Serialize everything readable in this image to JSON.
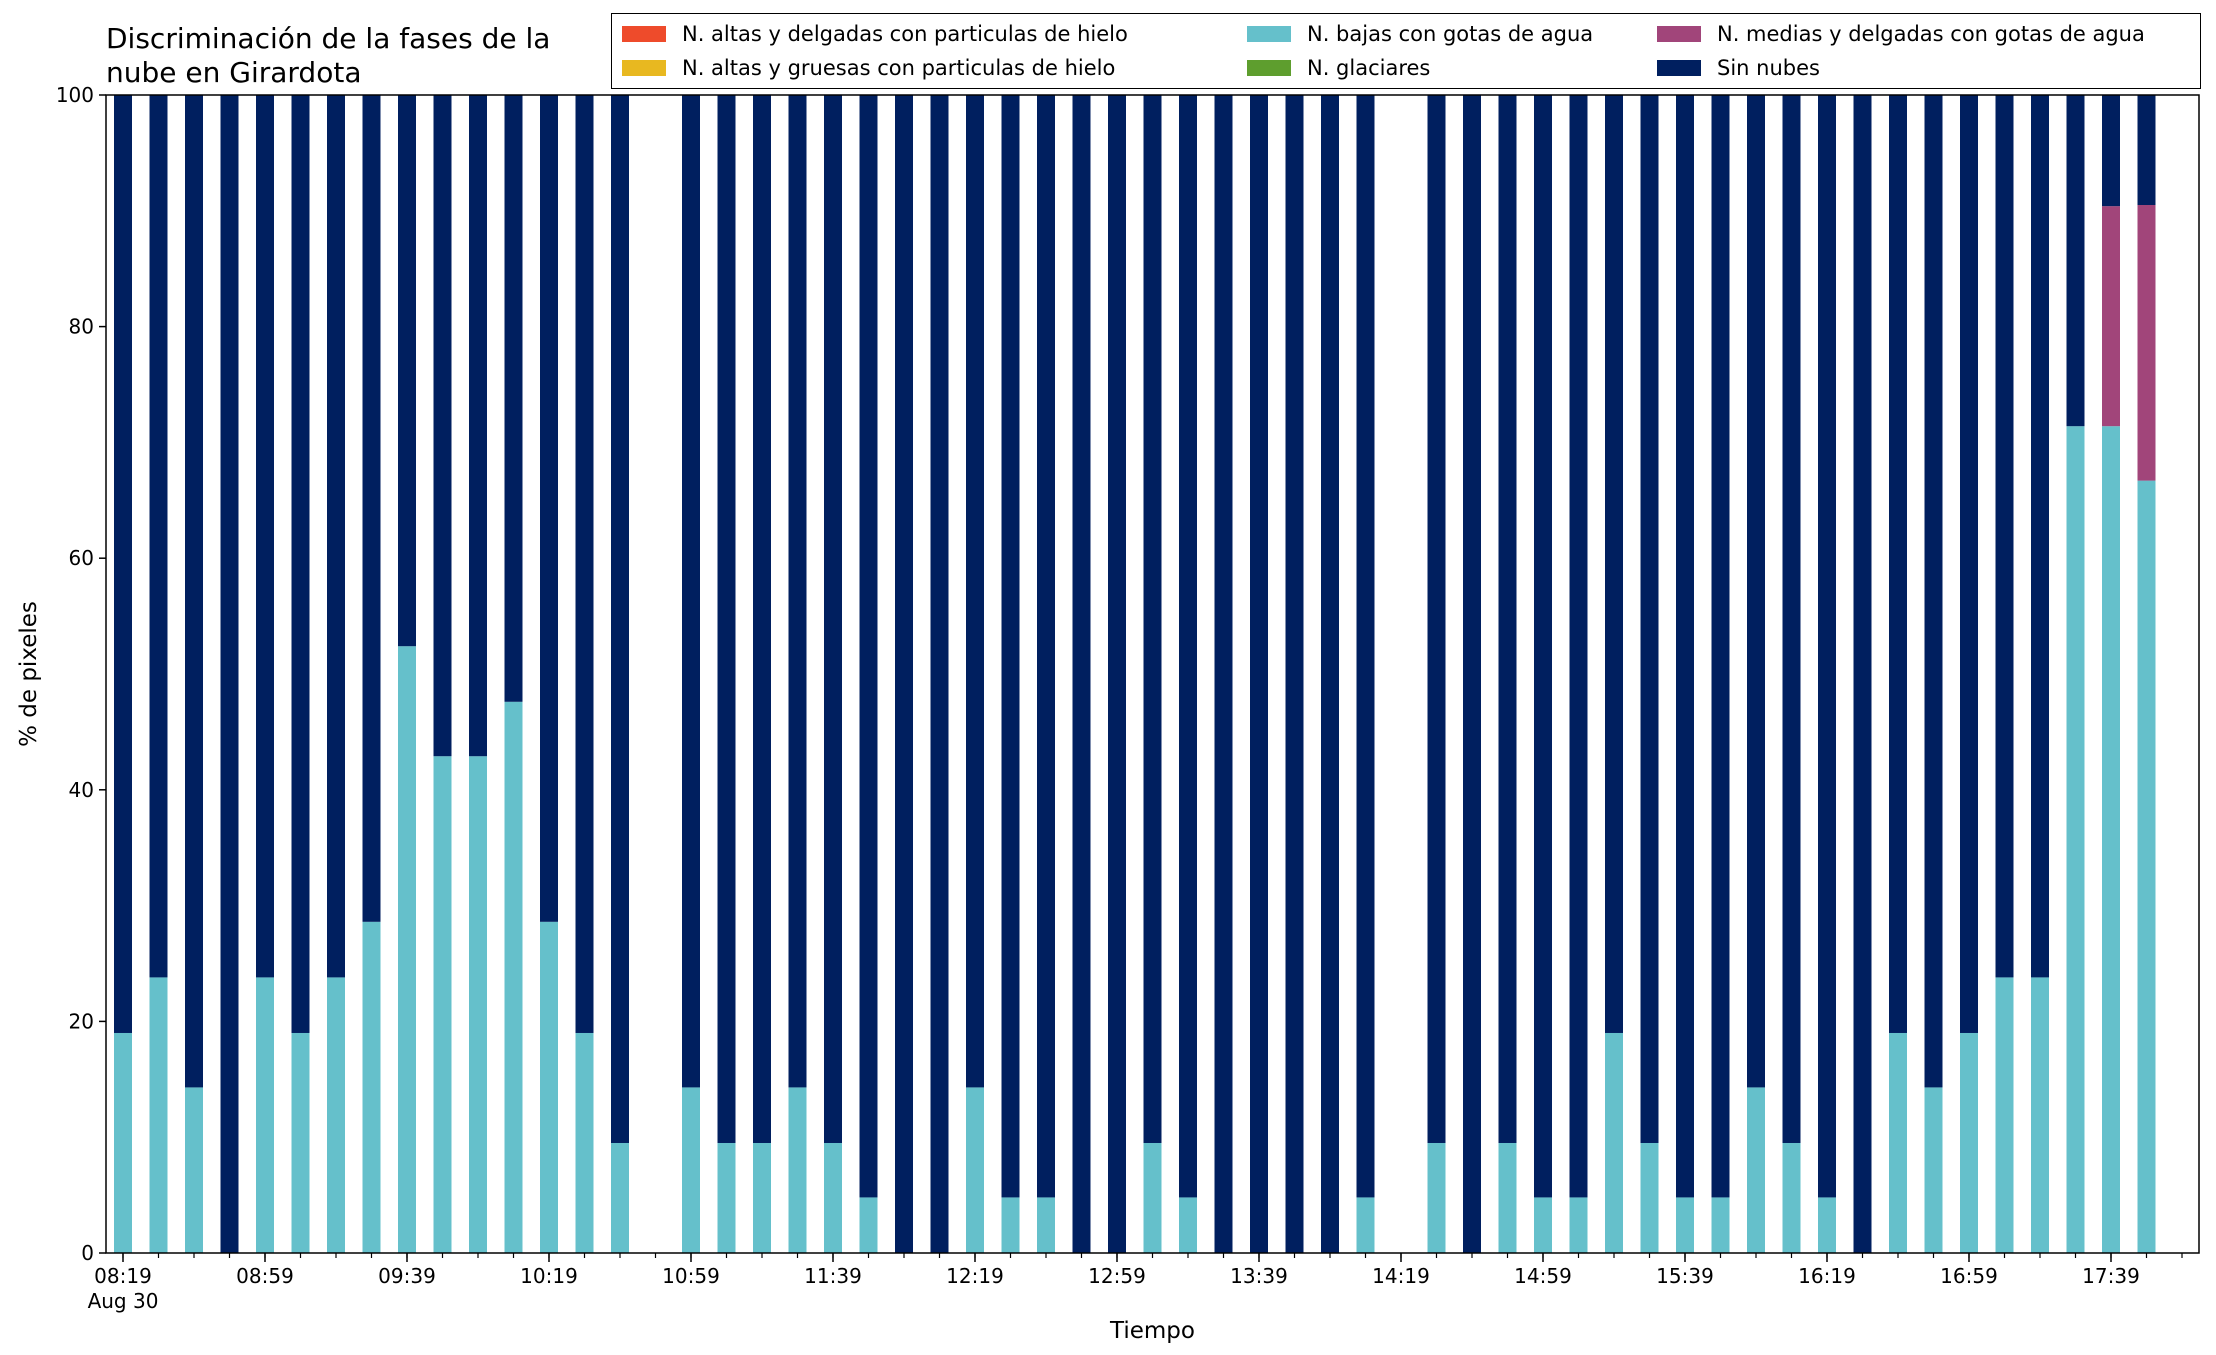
{
  "chart_data": {
    "type": "bar",
    "stacked": true,
    "title": "Discriminación de la fases de la nube en Girardota",
    "xlabel": "Tiempo",
    "ylabel": "% de pixeles",
    "ylim": [
      0,
      100
    ],
    "yticks": [
      0,
      20,
      40,
      60,
      80,
      100
    ],
    "grid": false,
    "legend_position": "top-right",
    "x_tick_labels": [
      "08:19",
      "08:59",
      "09:39",
      "10:19",
      "10:59",
      "11:39",
      "12:19",
      "12:59",
      "13:39",
      "14:19",
      "14:59",
      "15:39",
      "16:19",
      "16:59",
      "17:39"
    ],
    "x_date_label": "Aug 30",
    "categories": [
      "08:19",
      "08:29",
      "08:39",
      "08:49",
      "08:59",
      "09:09",
      "09:19",
      "09:29",
      "09:39",
      "09:49",
      "09:59",
      "10:09",
      "10:19",
      "10:29",
      "10:39",
      "10:49",
      "10:59",
      "11:09",
      "11:19",
      "11:29",
      "11:39",
      "11:49",
      "11:59",
      "12:09",
      "12:19",
      "12:29",
      "12:39",
      "12:49",
      "12:59",
      "13:09",
      "13:19",
      "13:29",
      "13:39",
      "13:49",
      "13:59",
      "14:09",
      "14:19",
      "14:29",
      "14:39",
      "14:49",
      "14:59",
      "15:09",
      "15:19",
      "15:29",
      "15:39",
      "15:49",
      "15:59",
      "16:09",
      "16:19",
      "16:29",
      "16:39",
      "16:49",
      "16:59",
      "17:09",
      "17:19",
      "17:29",
      "17:39",
      "17:49"
    ],
    "series": [
      {
        "name": "N. altas y delgadas con particulas de hielo",
        "color": "#ee4b2b",
        "values": [
          0,
          0,
          0,
          0,
          0,
          0,
          0,
          0,
          0,
          0,
          0,
          0,
          0,
          0,
          0,
          0,
          0,
          0,
          0,
          0,
          0,
          0,
          0,
          0,
          0,
          0,
          0,
          0,
          0,
          0,
          0,
          0,
          0,
          0,
          0,
          0,
          0,
          0,
          0,
          0,
          0,
          0,
          0,
          0,
          0,
          0,
          0,
          0,
          0,
          0,
          0,
          0,
          0,
          0,
          0,
          0,
          0,
          0
        ]
      },
      {
        "name": "N. altas y gruesas con particulas de hielo",
        "color": "#e8b820",
        "values": [
          0,
          0,
          0,
          0,
          0,
          0,
          0,
          0,
          0,
          0,
          0,
          0,
          0,
          0,
          0,
          0,
          0,
          0,
          0,
          0,
          0,
          0,
          0,
          0,
          0,
          0,
          0,
          0,
          0,
          0,
          0,
          0,
          0,
          0,
          0,
          0,
          0,
          0,
          0,
          0,
          0,
          0,
          0,
          0,
          0,
          0,
          0,
          0,
          0,
          0,
          0,
          0,
          0,
          0,
          0,
          0,
          0,
          0
        ]
      },
      {
        "name": "N. bajas con gotas de agua",
        "color": "#65c0cb",
        "values": [
          19.0,
          23.8,
          14.3,
          0,
          23.8,
          19.0,
          23.8,
          28.6,
          52.4,
          42.9,
          42.9,
          47.6,
          28.6,
          19.0,
          9.5,
          null,
          14.3,
          9.5,
          9.5,
          14.3,
          9.5,
          4.8,
          0,
          0,
          14.3,
          4.8,
          4.8,
          0,
          0,
          9.5,
          4.8,
          0,
          0,
          0,
          0,
          4.8,
          null,
          9.5,
          0,
          9.5,
          4.8,
          4.8,
          19.0,
          9.5,
          4.8,
          4.8,
          14.3,
          9.5,
          4.8,
          0,
          19.0,
          14.3,
          19.0,
          23.8,
          23.8,
          71.4,
          71.4,
          66.7
        ]
      },
      {
        "name": "N. glaciares",
        "color": "#5e9e2e",
        "values": [
          0,
          0,
          0,
          0,
          0,
          0,
          0,
          0,
          0,
          0,
          0,
          0,
          0,
          0,
          0,
          0,
          0,
          0,
          0,
          0,
          0,
          0,
          0,
          0,
          0,
          0,
          0,
          0,
          0,
          0,
          0,
          0,
          0,
          0,
          0,
          0,
          0,
          0,
          0,
          0,
          0,
          0,
          0,
          0,
          0,
          0,
          0,
          0,
          0,
          0,
          0,
          0,
          0,
          0,
          0,
          0,
          0,
          0
        ]
      },
      {
        "name": "N. medias y delgadas con gotas de agua",
        "color": "#a1457a",
        "values": [
          0,
          0,
          0,
          0,
          0,
          0,
          0,
          0,
          0,
          0,
          0,
          0,
          0,
          0,
          0,
          null,
          0,
          0,
          0,
          0,
          0,
          0,
          0,
          0,
          0,
          0,
          0,
          0,
          0,
          0,
          0,
          0,
          0,
          0,
          0,
          0,
          null,
          0,
          0,
          0,
          0,
          0,
          0,
          0,
          0,
          0,
          0,
          0,
          0,
          0,
          0,
          0,
          0,
          0,
          0,
          0,
          19.0,
          23.8
        ]
      },
      {
        "name": "Sin nubes",
        "color": "#001f5f",
        "values": [
          81.0,
          76.2,
          85.7,
          100,
          76.2,
          81.0,
          76.2,
          71.4,
          47.6,
          57.1,
          57.1,
          52.4,
          71.4,
          81.0,
          90.5,
          null,
          85.7,
          90.5,
          90.5,
          85.7,
          90.5,
          95.2,
          100,
          100,
          85.7,
          95.2,
          95.2,
          100,
          100,
          90.5,
          95.2,
          100,
          100,
          100,
          100,
          95.2,
          null,
          90.5,
          100,
          90.5,
          95.2,
          95.2,
          81.0,
          90.5,
          95.2,
          95.2,
          85.7,
          90.5,
          95.2,
          100,
          81.0,
          85.7,
          81.0,
          76.2,
          76.2,
          28.6,
          9.6,
          9.5
        ]
      }
    ]
  }
}
